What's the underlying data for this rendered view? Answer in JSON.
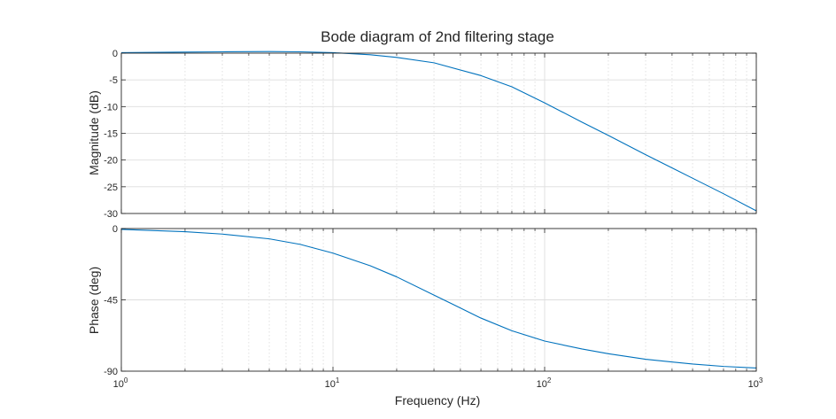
{
  "chart_data": {
    "type": "line",
    "title": "Bode diagram of 2nd filtering stage",
    "xlabel": "Frequency  (Hz)",
    "xscale": "log",
    "xlim": [
      1,
      1000
    ],
    "x_tick_labels": [
      {
        "base": "10",
        "exp": "0"
      },
      {
        "base": "10",
        "exp": "1"
      },
      {
        "base": "10",
        "exp": "2"
      },
      {
        "base": "10",
        "exp": "3"
      }
    ],
    "grid": true,
    "line_color": "#0072BD",
    "subplots": [
      {
        "name": "magnitude",
        "ylabel": "Magnitude (dB)",
        "ylim": [
          -30,
          0
        ],
        "yticks": [
          0,
          -5,
          -10,
          -15,
          -20,
          -25,
          -30
        ],
        "ytick_labels": [
          "0",
          "-5",
          "-10",
          "-15",
          "-20",
          "-25",
          "-30"
        ],
        "x": [
          1,
          2,
          3,
          5,
          7,
          10,
          15,
          20,
          30,
          50,
          70,
          100,
          150,
          200,
          300,
          500,
          700,
          1000
        ],
        "y": [
          0.1,
          0.2,
          0.25,
          0.3,
          0.25,
          0.1,
          -0.3,
          -0.8,
          -1.8,
          -4.2,
          -6.3,
          -9.3,
          -12.9,
          -15.4,
          -19.0,
          -23.4,
          -26.3,
          -29.5
        ]
      },
      {
        "name": "phase",
        "ylabel": "Phase (deg)",
        "ylim": [
          -90,
          0
        ],
        "yticks": [
          0,
          -45,
          -90
        ],
        "ytick_labels": [
          "0",
          "-45",
          "-90"
        ],
        "x": [
          1,
          2,
          3,
          5,
          7,
          10,
          15,
          20,
          30,
          50,
          70,
          100,
          150,
          200,
          300,
          500,
          700,
          1000
        ],
        "y": [
          -0.5,
          -2.0,
          -3.5,
          -6.5,
          -10.0,
          -15.5,
          -23.5,
          -30.5,
          -42.0,
          -56.5,
          -64.5,
          -71.0,
          -76.0,
          -79.0,
          -82.5,
          -85.5,
          -87.0,
          -88.0
        ]
      }
    ]
  }
}
